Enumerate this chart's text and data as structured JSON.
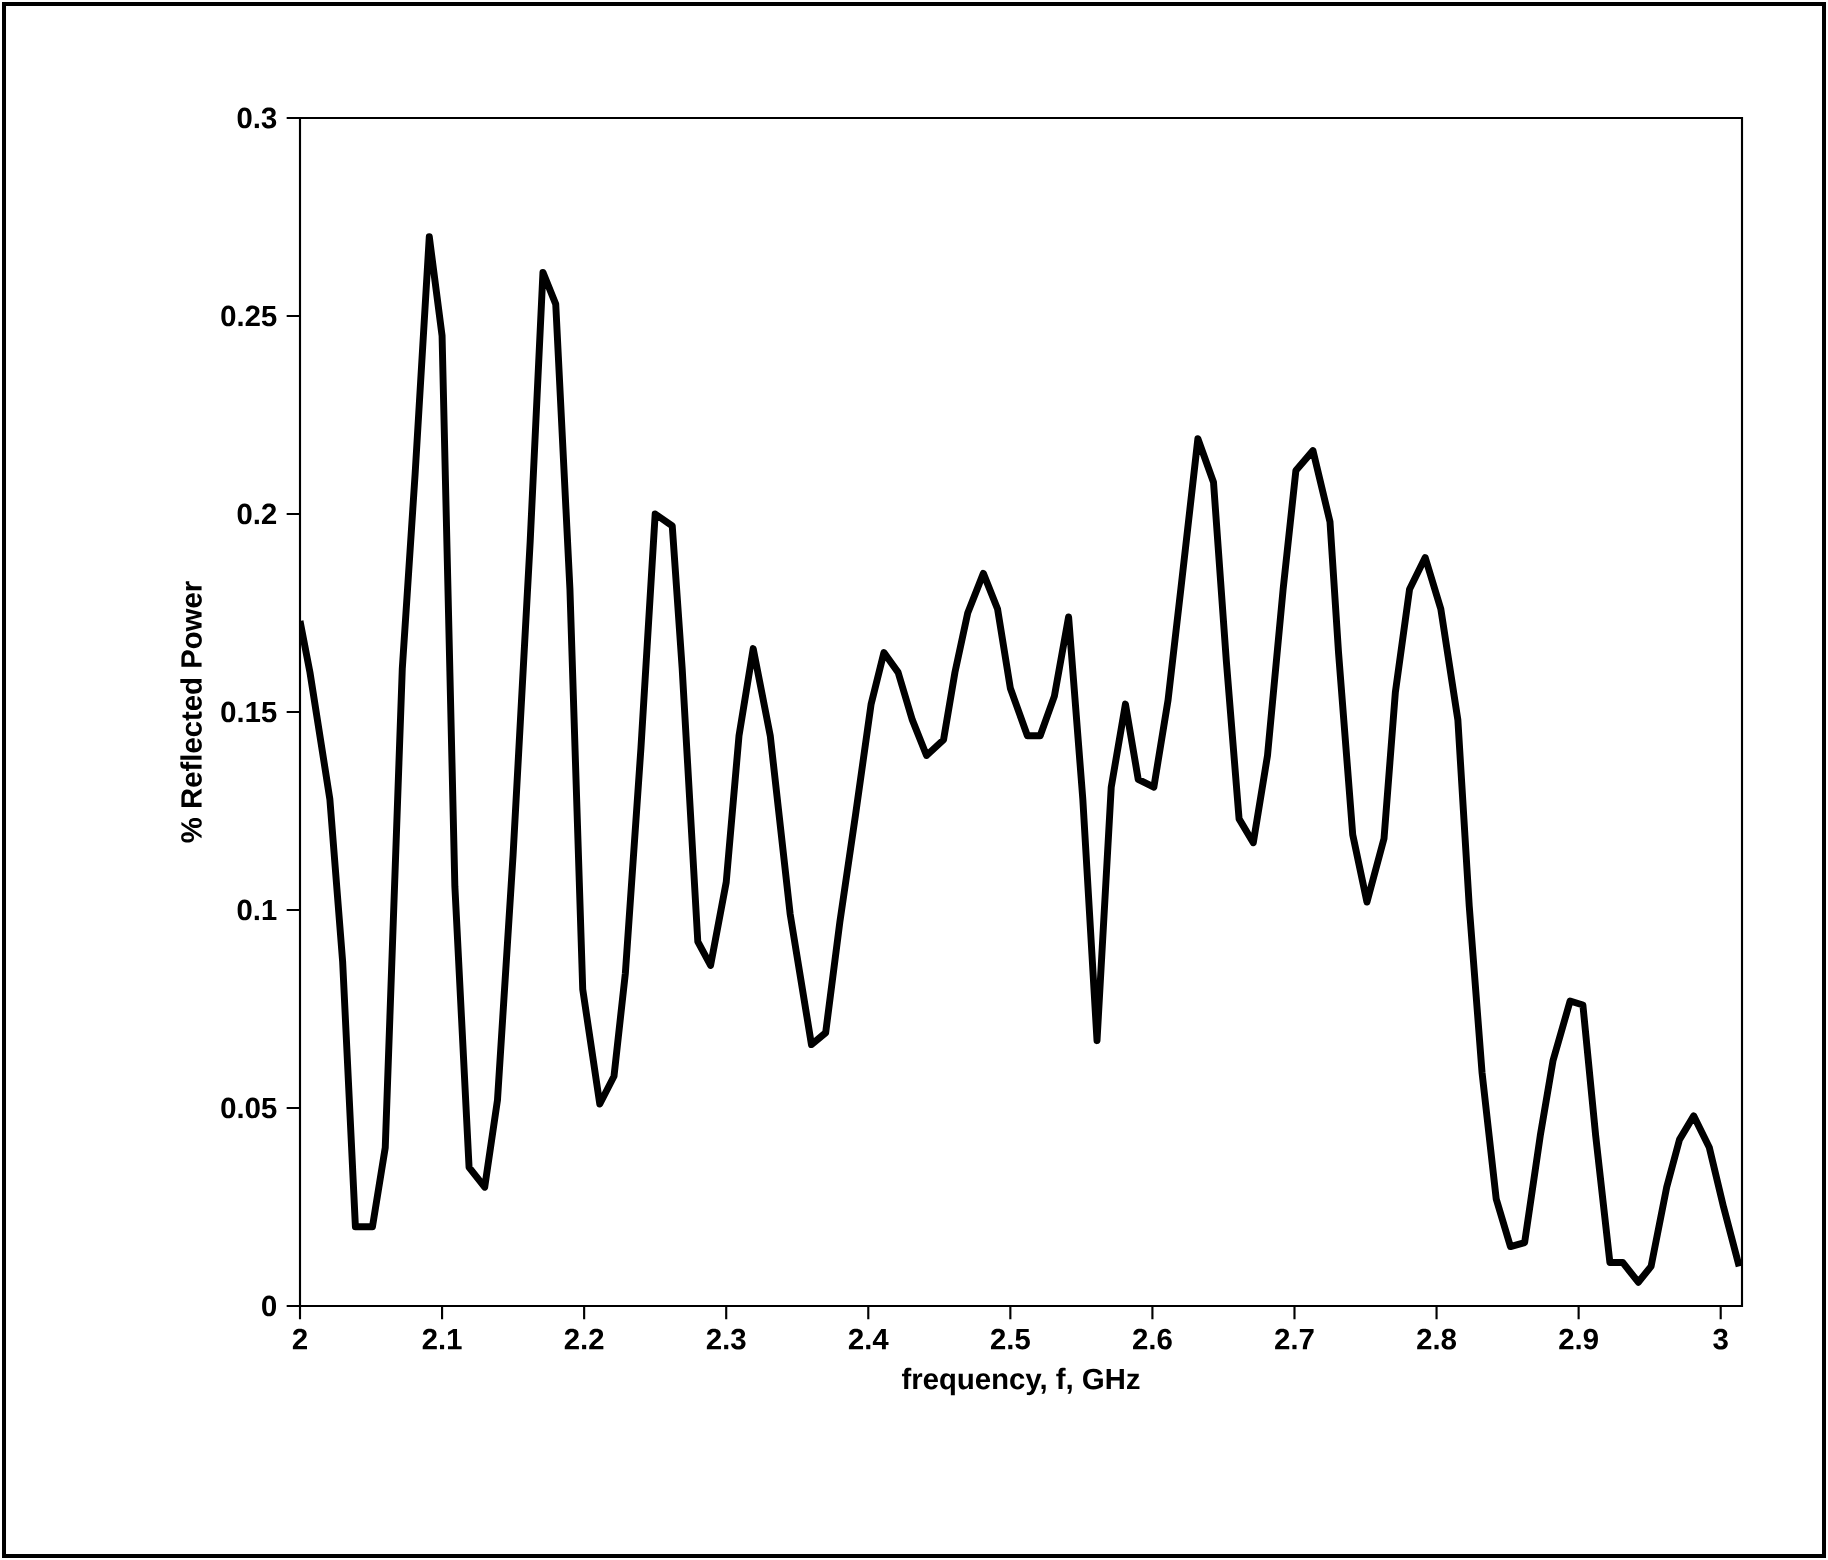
{
  "chart_data": {
    "type": "line",
    "xlabel": "frequency, f, GHz",
    "ylabel": "% Reflected Power",
    "xlim": [
      2,
      3.015
    ],
    "xticks": [
      2,
      2.1,
      2.2,
      2.3,
      2.4,
      2.5,
      2.6,
      2.7,
      2.8,
      2.9,
      3
    ],
    "ylim": [
      0,
      0.3
    ],
    "yticks": [
      0,
      0.05,
      0.1,
      0.15,
      0.2,
      0.25,
      0.3
    ],
    "grid": false,
    "marker": "none",
    "line_style": "solid",
    "series": [
      {
        "color": "#000000",
        "x": [
          2.0,
          2.007,
          2.021,
          2.03,
          2.039,
          2.051,
          2.06,
          2.072,
          2.081,
          2.091,
          2.1,
          2.109,
          2.119,
          2.13,
          2.139,
          2.15,
          2.162,
          2.171,
          2.18,
          2.19,
          2.199,
          2.211,
          2.221,
          2.229,
          2.24,
          2.25,
          2.262,
          2.269,
          2.28,
          2.289,
          2.3,
          2.309,
          2.319,
          2.331,
          2.345,
          2.36,
          2.37,
          2.38,
          2.391,
          2.402,
          2.411,
          2.421,
          2.431,
          2.441,
          2.453,
          2.461,
          2.47,
          2.481,
          2.491,
          2.5,
          2.512,
          2.521,
          2.531,
          2.541,
          2.551,
          2.561,
          2.571,
          2.581,
          2.59,
          2.601,
          2.611,
          2.62,
          2.632,
          2.643,
          2.652,
          2.661,
          2.671,
          2.681,
          2.692,
          2.701,
          2.713,
          2.725,
          2.731,
          2.741,
          2.751,
          2.763,
          2.771,
          2.781,
          2.792,
          2.803,
          2.815,
          2.823,
          2.832,
          2.842,
          2.852,
          2.862,
          2.873,
          2.882,
          2.894,
          2.903,
          2.912,
          2.922,
          2.931,
          2.942,
          2.951,
          2.962,
          2.971,
          2.981,
          2.992,
          3.002,
          3.013
        ],
        "values": [
          0.173,
          0.16,
          0.128,
          0.087,
          0.02,
          0.02,
          0.04,
          0.161,
          0.21,
          0.27,
          0.245,
          0.106,
          0.035,
          0.03,
          0.052,
          0.114,
          0.193,
          0.261,
          0.253,
          0.181,
          0.08,
          0.051,
          0.058,
          0.084,
          0.141,
          0.2,
          0.197,
          0.161,
          0.092,
          0.086,
          0.107,
          0.144,
          0.166,
          0.144,
          0.099,
          0.066,
          0.069,
          0.097,
          0.124,
          0.152,
          0.165,
          0.16,
          0.148,
          0.139,
          0.143,
          0.16,
          0.175,
          0.185,
          0.176,
          0.156,
          0.144,
          0.144,
          0.154,
          0.174,
          0.128,
          0.067,
          0.131,
          0.152,
          0.133,
          0.131,
          0.153,
          0.181,
          0.219,
          0.208,
          0.163,
          0.123,
          0.117,
          0.139,
          0.181,
          0.211,
          0.216,
          0.198,
          0.165,
          0.119,
          0.102,
          0.118,
          0.155,
          0.181,
          0.189,
          0.176,
          0.148,
          0.101,
          0.059,
          0.027,
          0.015,
          0.016,
          0.043,
          0.062,
          0.077,
          0.076,
          0.043,
          0.011,
          0.011,
          0.006,
          0.01,
          0.03,
          0.042,
          0.048,
          0.04,
          0.025,
          0.01
        ]
      }
    ]
  }
}
